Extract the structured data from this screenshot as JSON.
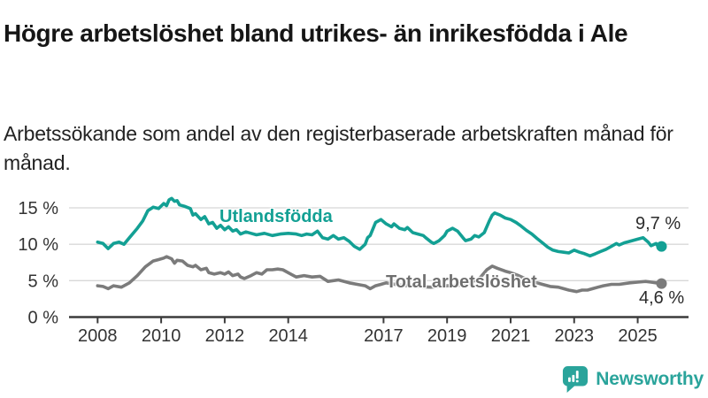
{
  "header": {
    "title": "Högre arbetslöshet bland utrikes- än inrikesfödda i Ale",
    "subtitle": "Arbetssökande som andel av den registerbaserade arbetskraften månad för månad."
  },
  "colors": {
    "teal": "#13A094",
    "gray_line": "#7B7B7B",
    "gray_label": "#6F6F6F",
    "gridline": "#D8D8D8",
    "axis": "#3C3C3C",
    "tick_text": "#333333",
    "logo_teal": "#2AA49B"
  },
  "chart_data": {
    "type": "line",
    "title": "Högre arbetslöshet bland utrikes- än inrikesfödda i Ale",
    "xlabel": "",
    "ylabel": "",
    "xlim": [
      2007.1,
      2026.6
    ],
    "ylim": [
      0,
      19.3
    ],
    "grid": "horizontal",
    "legend_position": "inline-labels",
    "x_ticks": [
      2008,
      2010,
      2012,
      2014,
      2017,
      2019,
      2021,
      2023,
      2025
    ],
    "x_tick_labels": [
      "2008",
      "2010",
      "2012",
      "2014",
      "2017",
      "2019",
      "2021",
      "2023",
      "2025"
    ],
    "y_ticks": [
      0,
      5,
      10,
      15
    ],
    "y_tick_labels": [
      "0 %",
      "5 %",
      "10 %",
      "15 %"
    ],
    "series": [
      {
        "name": "Total arbetslöshet",
        "color": "#7B7B7B",
        "end_label": "4,6 %",
        "end_value": 4.6,
        "points": [
          [
            2008.0,
            4.3
          ],
          [
            2008.17,
            4.2
          ],
          [
            2008.33,
            3.9
          ],
          [
            2008.5,
            4.3
          ],
          [
            2008.75,
            4.1
          ],
          [
            2009.0,
            4.7
          ],
          [
            2009.25,
            5.7
          ],
          [
            2009.5,
            6.9
          ],
          [
            2009.75,
            7.7
          ],
          [
            2009.92,
            7.9
          ],
          [
            2010.08,
            8.1
          ],
          [
            2010.17,
            8.3
          ],
          [
            2010.33,
            8.0
          ],
          [
            2010.42,
            7.4
          ],
          [
            2010.5,
            7.8
          ],
          [
            2010.67,
            7.7
          ],
          [
            2010.83,
            7.1
          ],
          [
            2011.0,
            6.9
          ],
          [
            2011.08,
            7.1
          ],
          [
            2011.25,
            6.5
          ],
          [
            2011.42,
            6.7
          ],
          [
            2011.5,
            6.1
          ],
          [
            2011.67,
            5.9
          ],
          [
            2011.87,
            6.1
          ],
          [
            2012.0,
            5.9
          ],
          [
            2012.12,
            6.2
          ],
          [
            2012.25,
            5.7
          ],
          [
            2012.42,
            5.9
          ],
          [
            2012.5,
            5.5
          ],
          [
            2012.62,
            5.3
          ],
          [
            2012.83,
            5.7
          ],
          [
            2013.0,
            6.1
          ],
          [
            2013.17,
            5.9
          ],
          [
            2013.33,
            6.5
          ],
          [
            2013.5,
            6.5
          ],
          [
            2013.67,
            6.6
          ],
          [
            2013.83,
            6.5
          ],
          [
            2014.08,
            5.9
          ],
          [
            2014.25,
            5.5
          ],
          [
            2014.5,
            5.7
          ],
          [
            2014.75,
            5.5
          ],
          [
            2015.0,
            5.6
          ],
          [
            2015.25,
            4.9
          ],
          [
            2015.58,
            5.1
          ],
          [
            2015.92,
            4.7
          ],
          [
            2016.17,
            4.5
          ],
          [
            2016.42,
            4.3
          ],
          [
            2016.58,
            3.9
          ],
          [
            2016.75,
            4.3
          ],
          [
            2016.92,
            4.5
          ],
          [
            2017.08,
            4.7
          ],
          [
            2017.5,
            4.4
          ],
          [
            2018.0,
            4.2
          ],
          [
            2018.5,
            4.1
          ],
          [
            2019.0,
            4.3
          ],
          [
            2019.5,
            4.4
          ],
          [
            2020.0,
            5.2
          ],
          [
            2020.25,
            6.5
          ],
          [
            2020.42,
            7.0
          ],
          [
            2020.58,
            6.7
          ],
          [
            2020.83,
            6.3
          ],
          [
            2021.0,
            6.1
          ],
          [
            2021.25,
            5.7
          ],
          [
            2021.5,
            5.2
          ],
          [
            2021.75,
            4.8
          ],
          [
            2022.0,
            4.5
          ],
          [
            2022.25,
            4.2
          ],
          [
            2022.5,
            4.1
          ],
          [
            2022.67,
            3.9
          ],
          [
            2022.83,
            3.7
          ],
          [
            2023.08,
            3.5
          ],
          [
            2023.25,
            3.7
          ],
          [
            2023.42,
            3.7
          ],
          [
            2023.58,
            3.9
          ],
          [
            2023.75,
            4.1
          ],
          [
            2023.92,
            4.3
          ],
          [
            2024.17,
            4.5
          ],
          [
            2024.42,
            4.5
          ],
          [
            2024.75,
            4.7
          ],
          [
            2025.0,
            4.8
          ],
          [
            2025.25,
            4.9
          ],
          [
            2025.42,
            4.8
          ],
          [
            2025.58,
            4.7
          ],
          [
            2025.75,
            4.6
          ]
        ]
      },
      {
        "name": "Utlandsfödda",
        "color": "#13A094",
        "end_label": "9,7 %",
        "end_value": 9.7,
        "points": [
          [
            2008.0,
            10.3
          ],
          [
            2008.17,
            10.1
          ],
          [
            2008.33,
            9.4
          ],
          [
            2008.5,
            10.1
          ],
          [
            2008.67,
            10.3
          ],
          [
            2008.83,
            10.0
          ],
          [
            2009.0,
            10.9
          ],
          [
            2009.25,
            12.2
          ],
          [
            2009.42,
            13.2
          ],
          [
            2009.58,
            14.6
          ],
          [
            2009.75,
            15.1
          ],
          [
            2009.92,
            14.9
          ],
          [
            2010.08,
            15.6
          ],
          [
            2010.17,
            15.3
          ],
          [
            2010.25,
            16.1
          ],
          [
            2010.33,
            16.3
          ],
          [
            2010.42,
            15.9
          ],
          [
            2010.5,
            16.0
          ],
          [
            2010.58,
            15.4
          ],
          [
            2010.75,
            15.2
          ],
          [
            2010.92,
            14.9
          ],
          [
            2011.0,
            14.0
          ],
          [
            2011.08,
            14.2
          ],
          [
            2011.25,
            13.4
          ],
          [
            2011.37,
            13.8
          ],
          [
            2011.5,
            12.8
          ],
          [
            2011.62,
            13.0
          ],
          [
            2011.75,
            12.2
          ],
          [
            2011.87,
            12.6
          ],
          [
            2012.0,
            12.0
          ],
          [
            2012.12,
            12.4
          ],
          [
            2012.25,
            11.8
          ],
          [
            2012.37,
            12.0
          ],
          [
            2012.5,
            11.4
          ],
          [
            2012.67,
            11.7
          ],
          [
            2012.83,
            11.5
          ],
          [
            2013.0,
            11.3
          ],
          [
            2013.25,
            11.5
          ],
          [
            2013.5,
            11.2
          ],
          [
            2013.75,
            11.4
          ],
          [
            2014.0,
            11.5
          ],
          [
            2014.25,
            11.4
          ],
          [
            2014.42,
            11.2
          ],
          [
            2014.58,
            11.4
          ],
          [
            2014.75,
            11.3
          ],
          [
            2014.92,
            11.8
          ],
          [
            2015.08,
            10.9
          ],
          [
            2015.25,
            10.7
          ],
          [
            2015.42,
            11.2
          ],
          [
            2015.58,
            10.7
          ],
          [
            2015.75,
            10.9
          ],
          [
            2015.92,
            10.4
          ],
          [
            2016.08,
            9.7
          ],
          [
            2016.25,
            9.3
          ],
          [
            2016.42,
            10.0
          ],
          [
            2016.5,
            10.9
          ],
          [
            2016.58,
            11.2
          ],
          [
            2016.75,
            13.0
          ],
          [
            2016.92,
            13.4
          ],
          [
            2017.08,
            12.8
          ],
          [
            2017.25,
            12.4
          ],
          [
            2017.33,
            12.8
          ],
          [
            2017.5,
            12.2
          ],
          [
            2017.67,
            12.0
          ],
          [
            2017.75,
            12.3
          ],
          [
            2017.92,
            11.6
          ],
          [
            2018.08,
            11.4
          ],
          [
            2018.25,
            11.2
          ],
          [
            2018.33,
            10.9
          ],
          [
            2018.5,
            10.3
          ],
          [
            2018.58,
            10.1
          ],
          [
            2018.75,
            10.5
          ],
          [
            2018.92,
            11.2
          ],
          [
            2019.0,
            11.8
          ],
          [
            2019.17,
            12.2
          ],
          [
            2019.33,
            11.8
          ],
          [
            2019.5,
            10.9
          ],
          [
            2019.58,
            10.5
          ],
          [
            2019.75,
            10.7
          ],
          [
            2019.87,
            11.2
          ],
          [
            2020.0,
            11.0
          ],
          [
            2020.17,
            11.6
          ],
          [
            2020.33,
            13.2
          ],
          [
            2020.42,
            14.0
          ],
          [
            2020.5,
            14.3
          ],
          [
            2020.67,
            14.0
          ],
          [
            2020.83,
            13.6
          ],
          [
            2021.0,
            13.4
          ],
          [
            2021.17,
            13.0
          ],
          [
            2021.33,
            12.5
          ],
          [
            2021.5,
            11.9
          ],
          [
            2021.67,
            11.4
          ],
          [
            2021.83,
            10.8
          ],
          [
            2022.0,
            10.2
          ],
          [
            2022.17,
            9.6
          ],
          [
            2022.33,
            9.2
          ],
          [
            2022.5,
            9.0
          ],
          [
            2022.67,
            8.9
          ],
          [
            2022.83,
            8.8
          ],
          [
            2023.0,
            9.2
          ],
          [
            2023.17,
            8.9
          ],
          [
            2023.33,
            8.7
          ],
          [
            2023.5,
            8.4
          ],
          [
            2023.67,
            8.7
          ],
          [
            2023.83,
            9.0
          ],
          [
            2024.0,
            9.3
          ],
          [
            2024.17,
            9.7
          ],
          [
            2024.33,
            10.1
          ],
          [
            2024.42,
            9.9
          ],
          [
            2024.58,
            10.2
          ],
          [
            2024.75,
            10.4
          ],
          [
            2025.0,
            10.7
          ],
          [
            2025.17,
            10.9
          ],
          [
            2025.33,
            10.3
          ],
          [
            2025.42,
            9.8
          ],
          [
            2025.58,
            10.1
          ],
          [
            2025.67,
            9.5
          ],
          [
            2025.75,
            9.7
          ]
        ]
      }
    ]
  },
  "footer": {
    "brand": "Newsworthy"
  }
}
